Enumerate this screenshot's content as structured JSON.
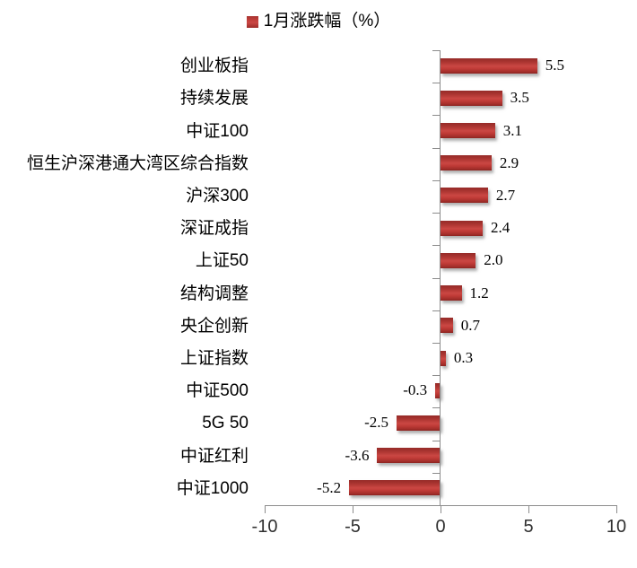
{
  "chart_data": {
    "type": "bar",
    "orientation": "horizontal",
    "title": "",
    "legend": {
      "label": "1月涨跌幅（%）",
      "position": "top-center"
    },
    "categories": [
      "创业板指",
      "持续发展",
      "中证100",
      "恒生沪深港通大湾区综合指数",
      "沪深300",
      "深证成指",
      "上证50",
      "结构调整",
      "央企创新",
      "上证指数",
      "中证500",
      "5G 50",
      "中证红利",
      "中证1000"
    ],
    "values": [
      5.5,
      3.5,
      3.1,
      2.9,
      2.7,
      2.4,
      2.0,
      1.2,
      0.7,
      0.3,
      -0.3,
      -2.5,
      -3.6,
      -5.2
    ],
    "value_labels": [
      "5.5",
      "3.5",
      "3.1",
      "2.9",
      "2.7",
      "2.4",
      "2.0",
      "1.2",
      "0.7",
      "0.3",
      "-0.3",
      "-2.5",
      "-3.6",
      "-5.2"
    ],
    "xlabel": "",
    "ylabel": "",
    "xlim": [
      -10,
      10
    ],
    "x_ticks": [
      -10,
      -5,
      0,
      5,
      10
    ],
    "x_tick_labels": [
      "-10",
      "-5",
      "0",
      "5",
      "10"
    ],
    "grid": false,
    "data_labels_shown": true,
    "colors": {
      "bar": "#c0392b",
      "bar_gradient_top": "#952b28",
      "bar_gradient_mid": "#cb4743",
      "bar_gradient_bottom": "#8c2421",
      "axis": "#8c8c8c",
      "text": "#000000",
      "background": "#ffffff"
    }
  }
}
